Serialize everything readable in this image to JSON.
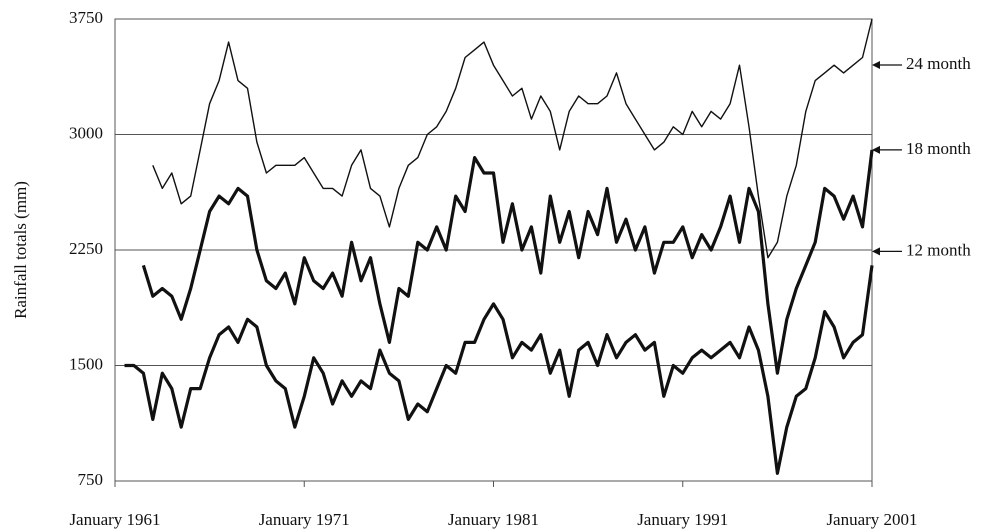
{
  "chart_data": {
    "type": "line",
    "y_label": "Rainfall totals (mm)",
    "x": [
      "1961-07",
      "1962-01",
      "1962-07",
      "1963-01",
      "1963-07",
      "1964-01",
      "1964-07",
      "1965-01",
      "1965-07",
      "1966-01",
      "1966-07",
      "1967-01",
      "1967-07",
      "1968-01",
      "1968-07",
      "1969-01",
      "1969-07",
      "1970-01",
      "1970-07",
      "1971-01",
      "1971-07",
      "1972-01",
      "1972-07",
      "1973-01",
      "1973-07",
      "1974-01",
      "1974-07",
      "1975-01",
      "1975-07",
      "1976-01",
      "1976-07",
      "1977-01",
      "1977-07",
      "1978-01",
      "1978-07",
      "1979-01",
      "1979-07",
      "1980-01",
      "1980-07",
      "1981-01",
      "1981-07",
      "1982-01",
      "1982-07",
      "1983-01",
      "1983-07",
      "1984-01",
      "1984-07",
      "1985-01",
      "1985-07",
      "1986-01",
      "1986-07",
      "1987-01",
      "1987-07",
      "1988-01",
      "1988-07",
      "1989-01",
      "1989-07",
      "1990-01",
      "1990-07",
      "1991-01",
      "1991-07",
      "1992-01",
      "1992-07",
      "1993-01",
      "1993-07",
      "1994-01",
      "1994-07",
      "1995-01",
      "1995-07",
      "1996-01",
      "1996-07",
      "1997-01",
      "1997-07",
      "1998-01",
      "1998-07",
      "1999-01",
      "1999-07",
      "2000-01",
      "2000-07",
      "2001-01"
    ],
    "series": [
      {
        "name": "24 month",
        "color": "#111111",
        "values": [
          null,
          null,
          null,
          2800,
          2650,
          2750,
          2550,
          2600,
          2900,
          3200,
          3350,
          3600,
          3350,
          3300,
          2950,
          2750,
          2800,
          2800,
          2800,
          2850,
          2750,
          2650,
          2650,
          2600,
          2800,
          2900,
          2650,
          2600,
          2400,
          2650,
          2800,
          2850,
          3000,
          3050,
          3150,
          3300,
          3500,
          3550,
          3600,
          3450,
          3350,
          3250,
          3300,
          3100,
          3250,
          3150,
          2900,
          3150,
          3250,
          3200,
          3200,
          3250,
          3400,
          3200,
          3100,
          3000,
          2900,
          2950,
          3050,
          3000,
          3150,
          3050,
          3150,
          3100,
          3200,
          3450,
          3050,
          2600,
          2200,
          2300,
          2600,
          2800,
          3150,
          3350,
          3400,
          3450,
          3400,
          3450,
          3500,
          3750
        ]
      },
      {
        "name": "18 month",
        "color": "#111111",
        "values": [
          null,
          null,
          2150,
          1950,
          2000,
          1950,
          1800,
          2000,
          2250,
          2500,
          2600,
          2550,
          2650,
          2600,
          2250,
          2050,
          2000,
          2100,
          1900,
          2200,
          2050,
          2000,
          2100,
          1950,
          2300,
          2050,
          2200,
          1900,
          1650,
          2000,
          1950,
          2300,
          2250,
          2400,
          2250,
          2600,
          2500,
          2850,
          2750,
          2750,
          2300,
          2550,
          2250,
          2400,
          2100,
          2600,
          2300,
          2500,
          2200,
          2500,
          2350,
          2650,
          2300,
          2450,
          2250,
          2400,
          2100,
          2300,
          2300,
          2400,
          2200,
          2350,
          2250,
          2400,
          2600,
          2300,
          2650,
          2500,
          1900,
          1450,
          1800,
          2000,
          2150,
          2300,
          2650,
          2600,
          2450,
          2600,
          2400,
          2900
        ]
      },
      {
        "name": "12 month",
        "color": "#111111",
        "values": [
          1500,
          1500,
          1450,
          1150,
          1450,
          1350,
          1100,
          1350,
          1350,
          1550,
          1700,
          1750,
          1650,
          1800,
          1750,
          1500,
          1400,
          1350,
          1100,
          1300,
          1550,
          1450,
          1250,
          1400,
          1300,
          1400,
          1350,
          1600,
          1450,
          1400,
          1150,
          1250,
          1200,
          1350,
          1500,
          1450,
          1650,
          1650,
          1800,
          1900,
          1800,
          1550,
          1650,
          1600,
          1700,
          1450,
          1600,
          1300,
          1600,
          1650,
          1500,
          1700,
          1550,
          1650,
          1700,
          1600,
          1650,
          1300,
          1500,
          1450,
          1550,
          1600,
          1550,
          1600,
          1650,
          1550,
          1750,
          1600,
          1300,
          800,
          1100,
          1300,
          1350,
          1550,
          1850,
          1750,
          1550,
          1650,
          1700,
          2150
        ]
      }
    ],
    "xlim": [
      "1961-01",
      "2001-01"
    ],
    "xticks": [
      {
        "value": "1961-01",
        "label": "January 1961"
      },
      {
        "value": "1971-01",
        "label": "January 1971"
      },
      {
        "value": "1981-01",
        "label": "January 1981"
      },
      {
        "value": "1991-01",
        "label": "January 1991"
      },
      {
        "value": "2001-01",
        "label": "January 2001"
      }
    ],
    "ylim": [
      750,
      3750
    ],
    "yticks": [
      750,
      1500,
      2250,
      3000,
      3750
    ],
    "grid": true
  }
}
